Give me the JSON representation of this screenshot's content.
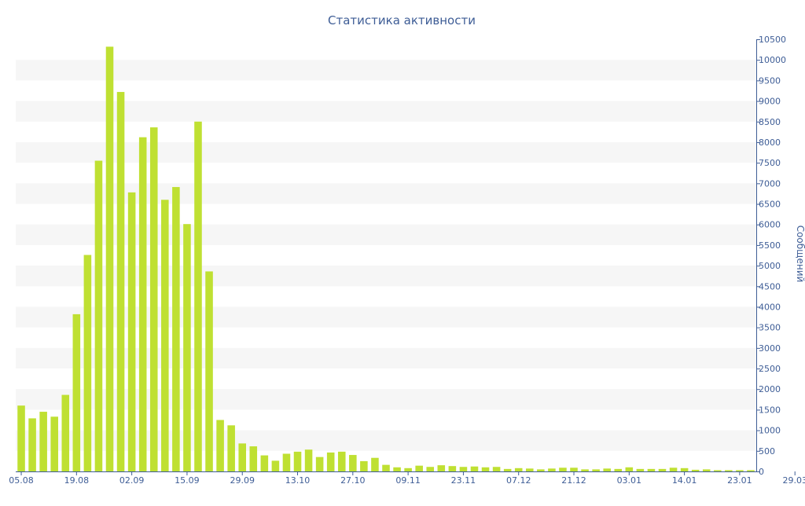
{
  "chart_data": {
    "type": "bar",
    "title": "Статистика активности",
    "ylabel": "Сообщений",
    "xlabel": "",
    "ylim": [
      0,
      10500
    ],
    "y_ticks": [
      0,
      500,
      1000,
      1500,
      2000,
      2500,
      3000,
      3500,
      4000,
      4500,
      5000,
      5500,
      6000,
      6500,
      7000,
      7500,
      8000,
      8500,
      9000,
      9500,
      10000,
      10500
    ],
    "x_tick_labels": [
      "05.08",
      "19.08",
      "02.09",
      "15.09",
      "29.09",
      "13.10",
      "27.10",
      "09.11",
      "23.11",
      "07.12",
      "21.12",
      "03.01",
      "14.01",
      "23.01",
      "29.03"
    ],
    "x_tick_positions": [
      0,
      5,
      10,
      15,
      20,
      25,
      30,
      35,
      40,
      45,
      50,
      55,
      60,
      65,
      70
    ],
    "values": [
      1600,
      1290,
      1450,
      1330,
      1860,
      3820,
      5260,
      7550,
      10320,
      9220,
      6780,
      8120,
      8360,
      6600,
      6910,
      6010,
      8500,
      4860,
      1250,
      1120,
      680,
      610,
      390,
      260,
      430,
      480,
      530,
      350,
      460,
      480,
      400,
      250,
      330,
      160,
      100,
      80,
      140,
      110,
      150,
      130,
      110,
      120,
      100,
      110,
      60,
      80,
      70,
      50,
      70,
      90,
      90,
      50,
      50,
      70,
      60,
      100,
      60,
      60,
      60,
      90,
      80,
      40,
      50,
      30,
      30,
      30,
      30
    ]
  },
  "colors": {
    "bar": "#bfe032",
    "band": "#f6f6f6",
    "axis": "#3e5d96",
    "title": "#3e5d96"
  }
}
